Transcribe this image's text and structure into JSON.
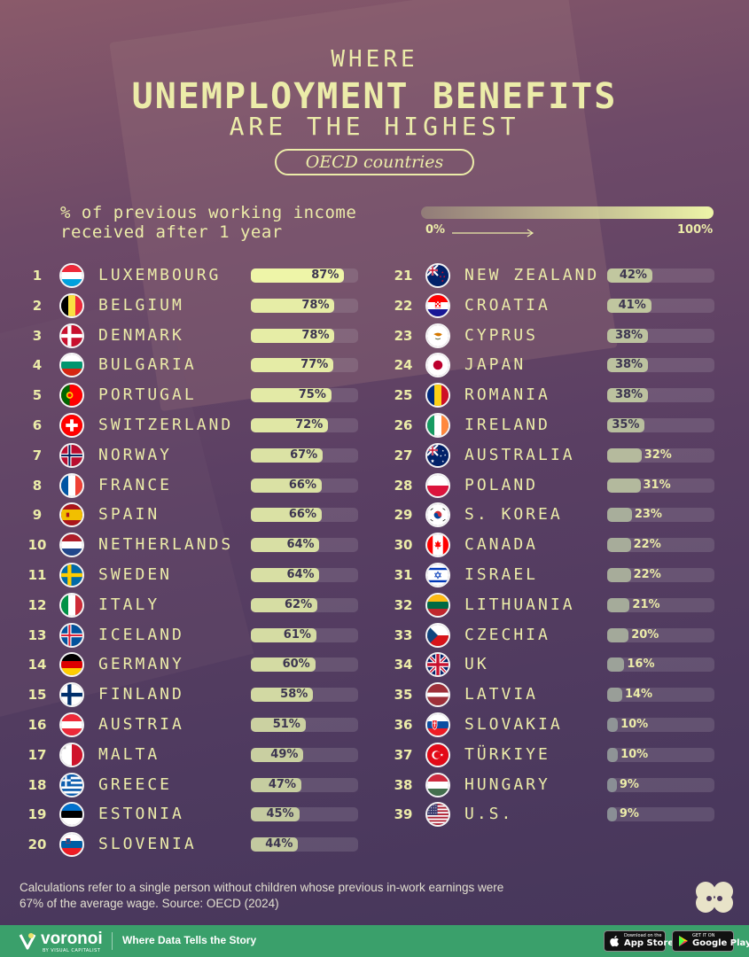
{
  "header": {
    "title_top": "WHERE",
    "title_main": "UNEMPLOYMENT BENEFITS",
    "title_bottom": "ARE THE HIGHEST",
    "subtitle": "OECD countries"
  },
  "legend": {
    "label": "% of previous working income received after 1 year",
    "min_label": "0%",
    "max_label": "100%"
  },
  "colors": {
    "bar_high": "#eef5a8",
    "bar_low": "#8a8f95",
    "text_accent": "#ececa9",
    "footer_green": "#3aa06b"
  },
  "chart_data": {
    "type": "bar",
    "unit": "%",
    "xlim": [
      0,
      100
    ],
    "rows": [
      {
        "rank": "1",
        "country": "LUXEMBOURG",
        "value": 87,
        "label": "87%",
        "flag": "luxembourg-flag"
      },
      {
        "rank": "2",
        "country": "BELGIUM",
        "value": 78,
        "label": "78%",
        "flag": "belgium-flag"
      },
      {
        "rank": "3",
        "country": "DENMARK",
        "value": 78,
        "label": "78%",
        "flag": "denmark-flag"
      },
      {
        "rank": "4",
        "country": "BULGARIA",
        "value": 77,
        "label": "77%",
        "flag": "bulgaria-flag"
      },
      {
        "rank": "5",
        "country": "PORTUGAL",
        "value": 75,
        "label": "75%",
        "flag": "portugal-flag"
      },
      {
        "rank": "6",
        "country": "SWITZERLAND",
        "value": 72,
        "label": "72%",
        "flag": "switzerland-flag"
      },
      {
        "rank": "7",
        "country": "NORWAY",
        "value": 67,
        "label": "67%",
        "flag": "norway-flag"
      },
      {
        "rank": "8",
        "country": "FRANCE",
        "value": 66,
        "label": "66%",
        "flag": "france-flag"
      },
      {
        "rank": "9",
        "country": "SPAIN",
        "value": 66,
        "label": "66%",
        "flag": "spain-flag"
      },
      {
        "rank": "10",
        "country": "NETHERLANDS",
        "value": 64,
        "label": "64%",
        "flag": "netherlands-flag"
      },
      {
        "rank": "11",
        "country": "SWEDEN",
        "value": 64,
        "label": "64%",
        "flag": "sweden-flag"
      },
      {
        "rank": "12",
        "country": "ITALY",
        "value": 62,
        "label": "62%",
        "flag": "italy-flag"
      },
      {
        "rank": "13",
        "country": "ICELAND",
        "value": 61,
        "label": "61%",
        "flag": "iceland-flag"
      },
      {
        "rank": "14",
        "country": "GERMANY",
        "value": 60,
        "label": "60%",
        "flag": "germany-flag"
      },
      {
        "rank": "15",
        "country": "FINLAND",
        "value": 58,
        "label": "58%",
        "flag": "finland-flag"
      },
      {
        "rank": "16",
        "country": "AUSTRIA",
        "value": 51,
        "label": "51%",
        "flag": "austria-flag"
      },
      {
        "rank": "17",
        "country": "MALTA",
        "value": 49,
        "label": "49%",
        "flag": "malta-flag"
      },
      {
        "rank": "18",
        "country": "GREECE",
        "value": 47,
        "label": "47%",
        "flag": "greece-flag"
      },
      {
        "rank": "19",
        "country": "ESTONIA",
        "value": 45,
        "label": "45%",
        "flag": "estonia-flag"
      },
      {
        "rank": "20",
        "country": "SLOVENIA",
        "value": 44,
        "label": "44%",
        "flag": "slovenia-flag"
      },
      {
        "rank": "21",
        "country": "NEW ZEALAND",
        "value": 42,
        "label": "42%",
        "flag": "new-zealand-flag"
      },
      {
        "rank": "22",
        "country": "CROATIA",
        "value": 41,
        "label": "41%",
        "flag": "croatia-flag"
      },
      {
        "rank": "23",
        "country": "CYPRUS",
        "value": 38,
        "label": "38%",
        "flag": "cyprus-flag"
      },
      {
        "rank": "24",
        "country": "JAPAN",
        "value": 38,
        "label": "38%",
        "flag": "japan-flag"
      },
      {
        "rank": "25",
        "country": "ROMANIA",
        "value": 38,
        "label": "38%",
        "flag": "romania-flag"
      },
      {
        "rank": "26",
        "country": "IRELAND",
        "value": 35,
        "label": "35%",
        "flag": "ireland-flag"
      },
      {
        "rank": "27",
        "country": "AUSTRALIA",
        "value": 32,
        "label": "32%",
        "flag": "australia-flag"
      },
      {
        "rank": "28",
        "country": "POLAND",
        "value": 31,
        "label": "31%",
        "flag": "poland-flag"
      },
      {
        "rank": "29",
        "country": "S. KOREA",
        "value": 23,
        "label": "23%",
        "flag": "south-korea-flag"
      },
      {
        "rank": "30",
        "country": "CANADA",
        "value": 22,
        "label": "22%",
        "flag": "canada-flag"
      },
      {
        "rank": "31",
        "country": "ISRAEL",
        "value": 22,
        "label": "22%",
        "flag": "israel-flag"
      },
      {
        "rank": "32",
        "country": "LITHUANIA",
        "value": 21,
        "label": "21%",
        "flag": "lithuania-flag"
      },
      {
        "rank": "33",
        "country": "CZECHIA",
        "value": 20,
        "label": "20%",
        "flag": "czechia-flag"
      },
      {
        "rank": "34",
        "country": "UK",
        "value": 16,
        "label": "16%",
        "flag": "uk-flag"
      },
      {
        "rank": "35",
        "country": "LATVIA",
        "value": 14,
        "label": "14%",
        "flag": "latvia-flag"
      },
      {
        "rank": "36",
        "country": "SLOVAKIA",
        "value": 10,
        "label": "10%",
        "flag": "slovakia-flag"
      },
      {
        "rank": "37",
        "country": "TÜRKIYE",
        "value": 10,
        "label": "10%",
        "flag": "turkiye-flag"
      },
      {
        "rank": "38",
        "country": "HUNGARY",
        "value": 9,
        "label": "9%",
        "flag": "hungary-flag"
      },
      {
        "rank": "39",
        "country": "U.S.",
        "value": 9,
        "label": "9%",
        "flag": "us-flag"
      }
    ]
  },
  "footnote": "Calculations refer to a single person without children whose previous in-work earnings were 67% of the average wage. Source: OECD (2024)",
  "footer": {
    "brand": "voronoi",
    "brand_sub": "BY VISUAL CAPITALIST",
    "tagline": "Where Data Tells the Story",
    "app_store_small": "Download on the",
    "app_store": "App Store",
    "google_play_small": "GET IT ON",
    "google_play": "Google Play"
  }
}
